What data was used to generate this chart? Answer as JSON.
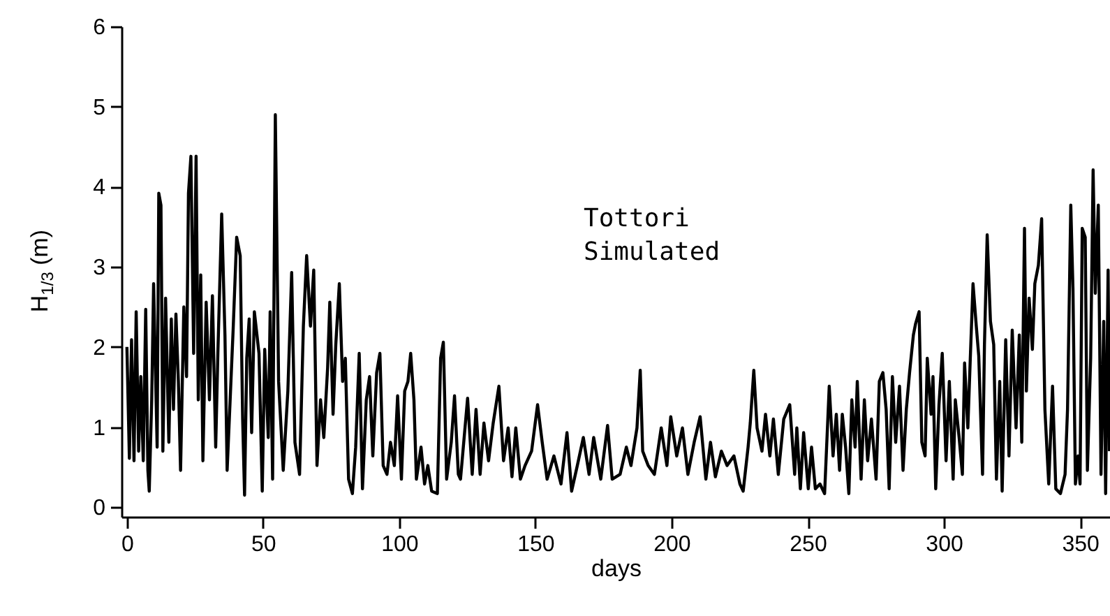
{
  "chart_data": {
    "type": "line",
    "xlabel": "days",
    "ylabel": "H$_{1/3}$ (m)",
    "annotations": [
      "Tottori",
      "Simulated"
    ],
    "xlim": [
      -2,
      361
    ],
    "ylim": [
      -0.12,
      6
    ],
    "xticks": [
      0,
      50,
      100,
      150,
      200,
      250,
      300,
      350
    ],
    "yticks": [
      0,
      1,
      2,
      3,
      4,
      5,
      6
    ],
    "grid": false,
    "marker": "none",
    "line_style": "solid",
    "series": [
      {
        "color": "#000000",
        "x": [
          0,
          0.9,
          1.7,
          2.6,
          3.4,
          4.3,
          5.1,
          6,
          6.9,
          7.7,
          8.2,
          9.1,
          9.8,
          11.1,
          11.7,
          12.5,
          13.2,
          14.2,
          15.4,
          16.3,
          17.1,
          18,
          18.9,
          19.7,
          20.9,
          21.9,
          22.6,
          23.5,
          24.5,
          25.4,
          26.2,
          27.1,
          27.9,
          29.1,
          30.3,
          31.4,
          32.6,
          33.4,
          34.8,
          36,
          36.8,
          39,
          40.3,
          41.6,
          42.5,
          43.2,
          44,
          44.9,
          45.8,
          46.8,
          48.5,
          49.7,
          50.6,
          51.9,
          52.6,
          53.5,
          54.5,
          55.7,
          57.4,
          59.1,
          60.5,
          61.7,
          63.4,
          64.8,
          66,
          67.4,
          68.6,
          69.8,
          71.1,
          72.3,
          73.7,
          74.5,
          75.7,
          76.7,
          78,
          79.2,
          80.2,
          81.4,
          82.8,
          84,
          85.3,
          86.5,
          87.9,
          89.1,
          90.3,
          91.7,
          92.9,
          94.1,
          95.5,
          96.8,
          98.2,
          99.4,
          100.8,
          102,
          103.2,
          104.2,
          105.4,
          106.3,
          108,
          109.3,
          110.5,
          111.9,
          114,
          115.2,
          116.2,
          117.4,
          119.1,
          120.3,
          121.7,
          122.5,
          125.1,
          126.8,
          128.2,
          129.7,
          131.1,
          132.8,
          134.5,
          136.6,
          138.3,
          140,
          141.4,
          142.8,
          144.5,
          146.2,
          148.6,
          150.8,
          152.5,
          154.3,
          156.8,
          159.4,
          161.6,
          163.3,
          165.4,
          167.6,
          169.7,
          171.4,
          174,
          176.5,
          178.2,
          181.1,
          183.4,
          185.1,
          187.3,
          188.5,
          189.4,
          191.4,
          193.7,
          196.2,
          198.3,
          199.7,
          201.9,
          204,
          206,
          208.3,
          210.5,
          212.6,
          214.3,
          216.1,
          218.3,
          220.4,
          222.9,
          225.1,
          226.3,
          228.1,
          228.9,
          230.2,
          231.4,
          233.2,
          234.5,
          236.1,
          237.4,
          239.2,
          241.2,
          243.4,
          245.2,
          246,
          247.3,
          248.5,
          250.2,
          251.4,
          252.8,
          254.5,
          256.2,
          257.9,
          259.3,
          260.5,
          261.7,
          262.7,
          263.9,
          265.1,
          266.2,
          267.4,
          268.2,
          269.6,
          270.8,
          272,
          273.4,
          275.1,
          276.3,
          277.6,
          278.8,
          279.9,
          281.1,
          282.3,
          283.7,
          285,
          286.2,
          287.4,
          288.8,
          289.6,
          290.9,
          291.9,
          293.1,
          293.9,
          295.3,
          296,
          297,
          298.2,
          299.4,
          300.8,
          302,
          303.4,
          304.2,
          305.6,
          306.8,
          307.6,
          308.8,
          309.7,
          310.7,
          311.9,
          312.8,
          314.2,
          314.9,
          315.9,
          317.1,
          318.3,
          319.3,
          320.5,
          321.4,
          322.7,
          323.9,
          325.1,
          326.5,
          327.7,
          328.6,
          329.6,
          330.3,
          331.3,
          332.5,
          333.4,
          334.7,
          335.9,
          337.1,
          338.5,
          339.9,
          341.1,
          342.8,
          344.5,
          345.4,
          346.6,
          347.4,
          348.3,
          349.3,
          350,
          350.8,
          351.9,
          352.7,
          353.9,
          354.8,
          355.6,
          356.7,
          357.7,
          358.7,
          359.4,
          360.3,
          360.8
        ],
        "values": [
          2.0,
          0.61,
          2.09,
          0.58,
          2.44,
          0.7,
          1.63,
          0.58,
          2.47,
          0.46,
          0.2,
          1.34,
          2.79,
          0.75,
          3.92,
          3.77,
          0.7,
          2.61,
          0.81,
          2.35,
          1.22,
          2.41,
          1.57,
          0.46,
          2.5,
          1.63,
          3.92,
          4.38,
          1.92,
          4.38,
          1.34,
          2.9,
          0.58,
          2.56,
          1.34,
          2.64,
          0.75,
          1.92,
          3.66,
          2.15,
          0.46,
          2.21,
          3.37,
          3.14,
          1.1,
          0.15,
          1.86,
          2.35,
          0.93,
          2.44,
          1.92,
          0.2,
          1.97,
          0.87,
          2.44,
          0.35,
          4.9,
          1.57,
          0.46,
          1.45,
          2.93,
          0.81,
          0.41,
          2.26,
          3.14,
          2.26,
          2.96,
          0.52,
          1.34,
          0.87,
          1.74,
          2.56,
          1.16,
          2.03,
          2.79,
          1.57,
          1.86,
          0.35,
          0.17,
          0.75,
          1.92,
          0.23,
          1.34,
          1.63,
          0.64,
          1.68,
          1.92,
          0.52,
          0.41,
          0.81,
          0.52,
          1.39,
          0.35,
          1.45,
          1.57,
          1.92,
          1.34,
          0.35,
          0.75,
          0.29,
          0.52,
          0.2,
          0.17,
          1.86,
          2.06,
          0.35,
          0.81,
          1.39,
          0.41,
          0.35,
          1.36,
          0.41,
          1.22,
          0.41,
          1.05,
          0.58,
          1.05,
          1.51,
          0.58,
          0.99,
          0.38,
          0.99,
          0.35,
          0.52,
          0.7,
          1.28,
          0.81,
          0.35,
          0.64,
          0.29,
          0.93,
          0.2,
          0.52,
          0.87,
          0.41,
          0.87,
          0.35,
          1.02,
          0.35,
          0.41,
          0.75,
          0.52,
          0.99,
          1.71,
          0.7,
          0.52,
          0.41,
          0.99,
          0.52,
          1.13,
          0.64,
          0.99,
          0.41,
          0.81,
          1.13,
          0.35,
          0.81,
          0.38,
          0.7,
          0.52,
          0.64,
          0.29,
          0.2,
          0.75,
          1.05,
          1.71,
          0.99,
          0.7,
          1.16,
          0.64,
          1.1,
          0.41,
          1.1,
          1.28,
          0.41,
          0.99,
          0.23,
          0.93,
          0.23,
          0.75,
          0.23,
          0.29,
          0.17,
          1.51,
          0.64,
          1.16,
          0.46,
          1.16,
          0.75,
          0.17,
          1.34,
          0.75,
          1.57,
          0.35,
          1.34,
          0.58,
          1.1,
          0.35,
          1.57,
          1.68,
          1.22,
          0.23,
          1.63,
          0.81,
          1.51,
          0.46,
          1.22,
          1.68,
          2.15,
          2.29,
          2.44,
          0.81,
          0.64,
          1.86,
          1.16,
          1.63,
          0.23,
          1.28,
          1.92,
          0.58,
          1.57,
          0.35,
          1.34,
          0.87,
          0.41,
          1.8,
          0.99,
          1.86,
          2.79,
          2.26,
          1.89,
          0.41,
          2.03,
          3.4,
          2.32,
          2.03,
          0.35,
          1.57,
          0.2,
          2.09,
          0.64,
          2.21,
          0.99,
          2.15,
          0.81,
          3.48,
          1.45,
          2.61,
          1.97,
          2.79,
          3.02,
          3.6,
          1.22,
          0.29,
          1.51,
          0.23,
          0.17,
          0.41,
          1.22,
          3.77,
          2.73,
          0.29,
          0.64,
          0.29,
          3.48,
          3.37,
          0.46,
          1.86,
          4.21,
          2.67,
          3.77,
          0.41,
          2.32,
          0.17,
          2.96,
          0.7
        ]
      }
    ]
  }
}
